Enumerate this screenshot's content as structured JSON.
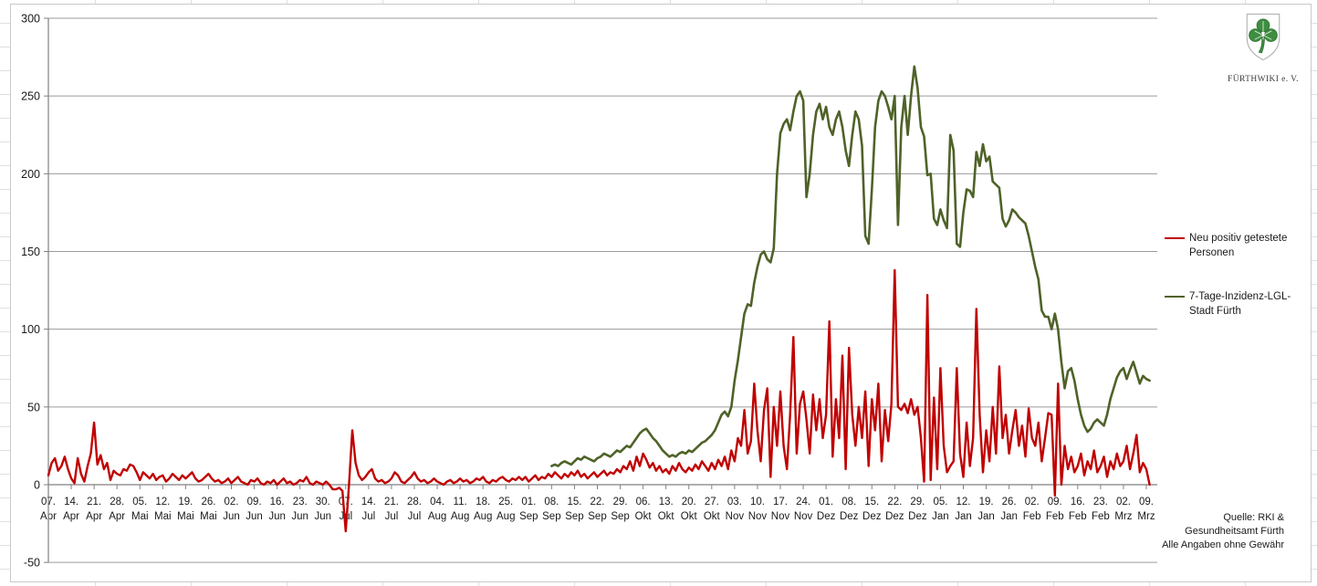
{
  "logo": {
    "caption": "FÜRTHWIKI e. V.",
    "shield_color": "#3e8e41"
  },
  "legend": {
    "items": [
      {
        "lines": [
          "Neu positiv getestete",
          "Personen"
        ]
      },
      {
        "lines": [
          "7-Tage-Inzidenz-LGL-",
          "Stadt Fürth"
        ]
      }
    ]
  },
  "source_note": {
    "lines": [
      "Quelle: RKI &",
      "Gesundheitsamt Fürth",
      "Alle Angaben ohne Gewähr"
    ]
  },
  "chart_data": {
    "type": "line",
    "title": "",
    "xlabel": "",
    "ylabel": "",
    "ylim": [
      -50,
      300
    ],
    "y_ticks": [
      -50,
      0,
      50,
      100,
      150,
      200,
      250,
      300
    ],
    "grid": true,
    "grid_color": "#9b9b9b",
    "axis_color": "#808080",
    "label_color": "#1a1a1a",
    "legend_position": "right",
    "x_tick_every": 7,
    "x_tick_days": [
      "07.",
      "14.",
      "21.",
      "28.",
      "05.",
      "12.",
      "19.",
      "26.",
      "02.",
      "09.",
      "16.",
      "23.",
      "30.",
      "07.",
      "14.",
      "21.",
      "28.",
      "04.",
      "11.",
      "18.",
      "25.",
      "01.",
      "08.",
      "15.",
      "22.",
      "29.",
      "06.",
      "13.",
      "20.",
      "27.",
      "03.",
      "10.",
      "17.",
      "24.",
      "01.",
      "08.",
      "15.",
      "22.",
      "29.",
      "05.",
      "12.",
      "19.",
      "26.",
      "02.",
      "09.",
      "16.",
      "23.",
      "02.",
      "09."
    ],
    "x_tick_months": [
      "Apr",
      "Apr",
      "Apr",
      "Apr",
      "Mai",
      "Mai",
      "Mai",
      "Mai",
      "Jun",
      "Jun",
      "Jun",
      "Jun",
      "Jun",
      "Jul",
      "Jul",
      "Jul",
      "Jul",
      "Aug",
      "Aug",
      "Aug",
      "Aug",
      "Sep",
      "Sep",
      "Sep",
      "Sep",
      "Sep",
      "Okt",
      "Okt",
      "Okt",
      "Okt",
      "Nov",
      "Nov",
      "Nov",
      "Nov",
      "Dez",
      "Dez",
      "Dez",
      "Dez",
      "Dez",
      "Jan",
      "Jan",
      "Jan",
      "Jan",
      "Feb",
      "Feb",
      "Feb",
      "Feb",
      "Mrz",
      "Mrz"
    ],
    "series": [
      {
        "name": "Neu positiv getestete Personen",
        "color": "#C00000",
        "stroke_width": 2.4,
        "start_index": 0,
        "values": [
          6,
          14,
          17,
          9,
          12,
          18,
          10,
          4,
          1,
          17,
          7,
          2,
          12,
          20,
          40,
          13,
          19,
          10,
          14,
          3,
          9,
          7,
          6,
          10,
          9,
          13,
          12,
          8,
          3,
          8,
          6,
          4,
          7,
          3,
          5,
          6,
          2,
          4,
          7,
          5,
          3,
          6,
          4,
          6,
          8,
          4,
          2,
          3,
          5,
          7,
          4,
          2,
          3,
          1,
          2,
          4,
          1,
          3,
          5,
          2,
          1,
          0,
          3,
          2,
          4,
          1,
          0,
          2,
          1,
          3,
          0,
          2,
          4,
          1,
          2,
          0,
          1,
          3,
          2,
          5,
          1,
          0,
          2,
          1,
          0,
          2,
          0,
          -3,
          -3,
          -2,
          -4,
          -30,
          0,
          35,
          14,
          6,
          3,
          5,
          8,
          10,
          4,
          2,
          3,
          1,
          2,
          4,
          8,
          6,
          2,
          1,
          3,
          5,
          8,
          4,
          2,
          3,
          1,
          2,
          4,
          2,
          1,
          0,
          2,
          3,
          1,
          2,
          4,
          2,
          3,
          1,
          2,
          4,
          3,
          5,
          2,
          1,
          3,
          2,
          4,
          5,
          3,
          2,
          4,
          3,
          5,
          3,
          5,
          2,
          4,
          6,
          3,
          5,
          4,
          7,
          5,
          8,
          6,
          4,
          7,
          5,
          8,
          6,
          9,
          5,
          7,
          4,
          6,
          8,
          5,
          7,
          9,
          6,
          8,
          7,
          10,
          8,
          12,
          10,
          15,
          9,
          18,
          12,
          20,
          16,
          11,
          14,
          9,
          12,
          8,
          10,
          7,
          12,
          9,
          14,
          10,
          8,
          11,
          9,
          13,
          10,
          15,
          12,
          9,
          14,
          10,
          16,
          12,
          18,
          10,
          22,
          15,
          30,
          25,
          48,
          20,
          28,
          65,
          35,
          15,
          48,
          62,
          5,
          50,
          25,
          60,
          25,
          10,
          45,
          95,
          20,
          52,
          60,
          42,
          20,
          58,
          35,
          55,
          30,
          45,
          105,
          18,
          55,
          30,
          83,
          10,
          88,
          45,
          25,
          50,
          30,
          60,
          12,
          55,
          35,
          65,
          15,
          48,
          28,
          52,
          138,
          50,
          48,
          52,
          46,
          55,
          45,
          50,
          30,
          2,
          122,
          3,
          56,
          10,
          75,
          25,
          8,
          12,
          15,
          75,
          20,
          5,
          40,
          12,
          30,
          113,
          45,
          8,
          35,
          15,
          50,
          20,
          76,
          30,
          45,
          20,
          35,
          48,
          25,
          38,
          18,
          49,
          30,
          25,
          40,
          15,
          30,
          46,
          45,
          -7,
          65,
          0,
          25,
          10,
          18,
          8,
          12,
          20,
          6,
          15,
          10,
          22,
          8,
          12,
          18,
          5,
          15,
          10,
          20,
          12,
          15,
          25,
          10,
          20,
          32,
          8,
          14,
          10,
          0
        ]
      },
      {
        "name": "7-Tage-Inzidenz-LGL-Stadt Fürth",
        "color": "#4F6228",
        "stroke_width": 2.6,
        "start_index": 154,
        "values": [
          12,
          13,
          12,
          14,
          15,
          14,
          13,
          15,
          17,
          16,
          18,
          17,
          16,
          15,
          17,
          18,
          20,
          19,
          18,
          20,
          22,
          21,
          23,
          25,
          24,
          27,
          30,
          33,
          35,
          36,
          33,
          30,
          28,
          25,
          22,
          20,
          18,
          19,
          18,
          20,
          21,
          20,
          22,
          21,
          23,
          25,
          27,
          28,
          30,
          32,
          35,
          40,
          45,
          47,
          44,
          50,
          67,
          80,
          95,
          110,
          116,
          115,
          130,
          140,
          148,
          150,
          145,
          143,
          152,
          200,
          226,
          232,
          235,
          228,
          240,
          250,
          253,
          247,
          185,
          200,
          225,
          240,
          245,
          235,
          243,
          230,
          225,
          235,
          240,
          230,
          215,
          205,
          225,
          240,
          235,
          218,
          160,
          155,
          190,
          230,
          247,
          253,
          250,
          243,
          235,
          250,
          167,
          230,
          250,
          225,
          250,
          269,
          255,
          230,
          224,
          199,
          200,
          171,
          167,
          177,
          170,
          165,
          225,
          215,
          155,
          153,
          175,
          190,
          189,
          185,
          214,
          205,
          219,
          208,
          211,
          195,
          193,
          191,
          171,
          166,
          170,
          177,
          175,
          172,
          170,
          168,
          160,
          150,
          140,
          132,
          112,
          108,
          108,
          100,
          110,
          100,
          79,
          62,
          73,
          75,
          67,
          55,
          45,
          38,
          34,
          36,
          40,
          42,
          40,
          38,
          45,
          55,
          62,
          69,
          73,
          75,
          68,
          74,
          79,
          72,
          65,
          70,
          68,
          67
        ]
      }
    ]
  }
}
